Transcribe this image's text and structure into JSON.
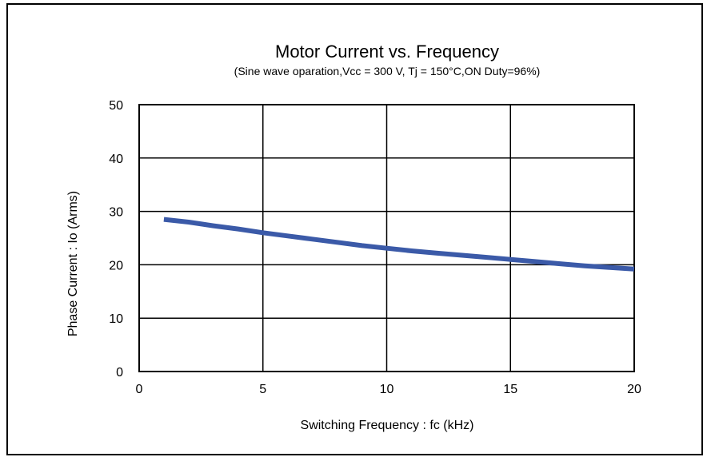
{
  "chart_data": {
    "type": "line",
    "title": "Motor Current vs. Frequency",
    "subtitle": "(Sine wave oparation,Vcc = 300 V, Tj = 150°C,ON  Duty=96%)",
    "xlabel": "Switching Frequency : fc  (kHz)",
    "ylabel": "Phase Current : Io (Arms)",
    "xlim": [
      0,
      20
    ],
    "ylim": [
      0,
      50
    ],
    "xticks": [
      "0",
      "5",
      "10",
      "15",
      "20"
    ],
    "yticks": [
      "0",
      "10",
      "20",
      "30",
      "40",
      "50"
    ],
    "grid": true,
    "line_color": "#3b5aa8",
    "series": [
      {
        "x": [
          1,
          2,
          3,
          4,
          5,
          6,
          7,
          8,
          9,
          10,
          11,
          12,
          13,
          14,
          15,
          16,
          17,
          18,
          19,
          20
        ],
        "y": [
          28.5,
          28.0,
          27.3,
          26.7,
          26.0,
          25.4,
          24.8,
          24.2,
          23.6,
          23.1,
          22.6,
          22.2,
          21.8,
          21.4,
          21.0,
          20.6,
          20.2,
          19.8,
          19.5,
          19.2
        ]
      }
    ]
  }
}
